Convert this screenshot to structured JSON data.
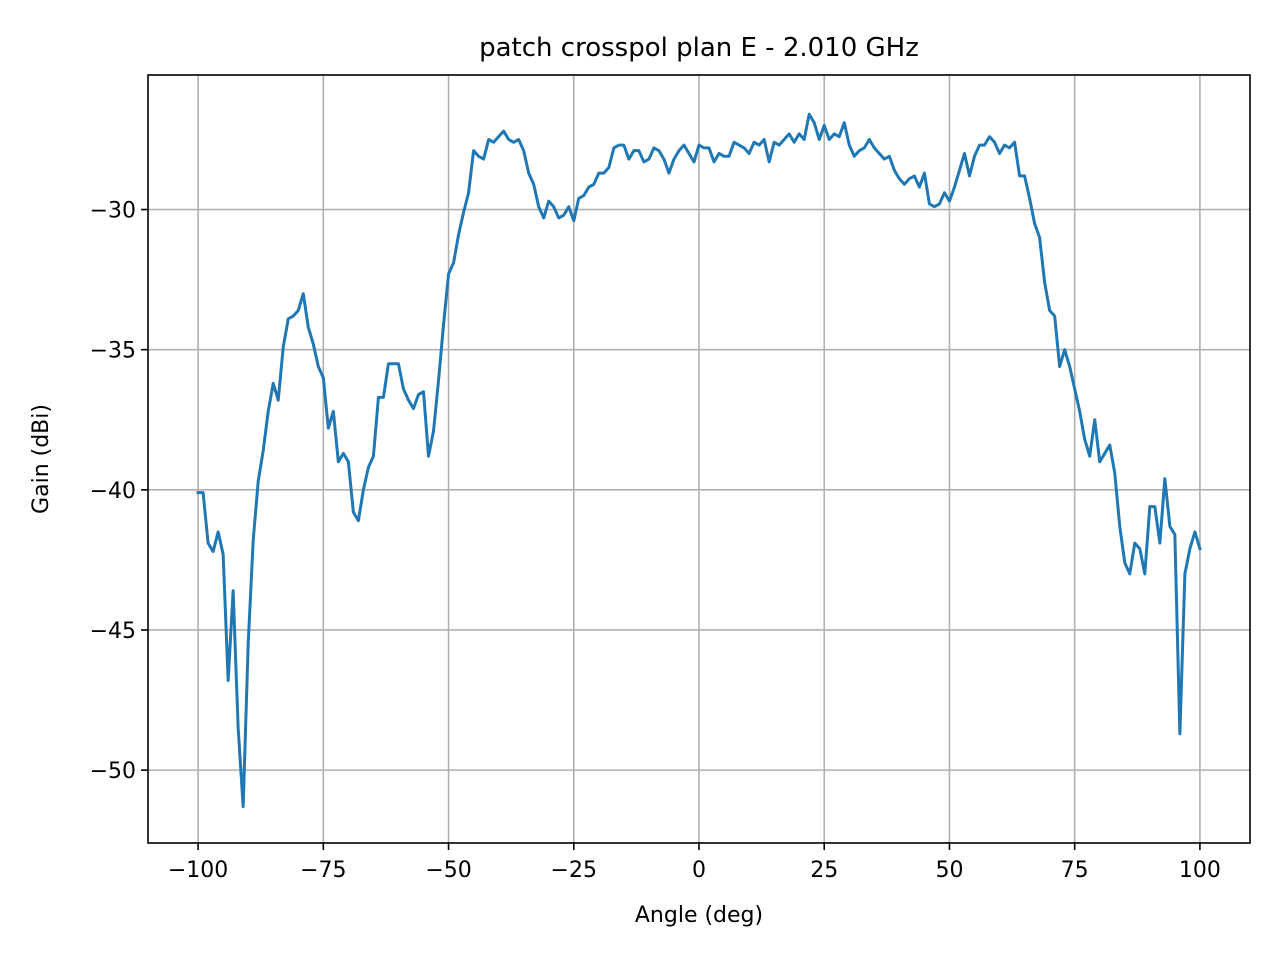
{
  "chart_data": {
    "type": "line",
    "title": "patch crosspol plan E - 2.010 GHz",
    "xlabel": "Angle (deg)",
    "ylabel": "Gain (dBi)",
    "xlim": [
      -110,
      110
    ],
    "ylim": [
      -52.6,
      -25.2
    ],
    "xticks": [
      -100,
      -75,
      -50,
      -25,
      0,
      25,
      50,
      75,
      100
    ],
    "xtick_labels": [
      "−100",
      "−75",
      "−50",
      "−25",
      "0",
      "25",
      "50",
      "75",
      "100"
    ],
    "yticks": [
      -50,
      -45,
      -40,
      -35,
      -30
    ],
    "ytick_labels": [
      "−50",
      "−45",
      "−40",
      "−35",
      "−30"
    ],
    "grid": true,
    "series": [
      {
        "color": "#1f77b4",
        "x": [
          -100,
          -99,
          -98,
          -97,
          -96,
          -95,
          -94,
          -93,
          -92,
          -91,
          -90,
          -89,
          -88,
          -87,
          -86,
          -85,
          -84,
          -83,
          -82,
          -81,
          -80,
          -79,
          -78,
          -77,
          -76,
          -75,
          -74,
          -73,
          -72,
          -71,
          -70,
          -69,
          -68,
          -67,
          -66,
          -65,
          -64,
          -63,
          -62,
          -61,
          -60,
          -59,
          -58,
          -57,
          -56,
          -55,
          -54,
          -53,
          -52,
          -51,
          -50,
          -49,
          -48,
          -47,
          -46,
          -45,
          -44,
          -43,
          -42,
          -41,
          -40,
          -39,
          -38,
          -37,
          -36,
          -35,
          -34,
          -33,
          -32,
          -31,
          -30,
          -29,
          -28,
          -27,
          -26,
          -25,
          -24,
          -23,
          -22,
          -21,
          -20,
          -19,
          -18,
          -17,
          -16,
          -15,
          -14,
          -13,
          -12,
          -11,
          -10,
          -9,
          -8,
          -7,
          -6,
          -5,
          -4,
          -3,
          -2,
          -1,
          0,
          1,
          2,
          3,
          4,
          5,
          6,
          7,
          8,
          9,
          10,
          11,
          12,
          13,
          14,
          15,
          16,
          17,
          18,
          19,
          20,
          21,
          22,
          23,
          24,
          25,
          26,
          27,
          28,
          29,
          30,
          31,
          32,
          33,
          34,
          35,
          36,
          37,
          38,
          39,
          40,
          41,
          42,
          43,
          44,
          45,
          46,
          47,
          48,
          49,
          50,
          51,
          52,
          53,
          54,
          55,
          56,
          57,
          58,
          59,
          60,
          61,
          62,
          63,
          64,
          65,
          66,
          67,
          68,
          69,
          70,
          71,
          72,
          73,
          74,
          75,
          76,
          77,
          78,
          79,
          80,
          81,
          82,
          83,
          84,
          85,
          86,
          87,
          88,
          89,
          90,
          91,
          92,
          93,
          94,
          95,
          96,
          97,
          98,
          99,
          100
        ],
        "y": [
          -40.1,
          -40.1,
          -41.9,
          -42.2,
          -41.5,
          -42.3,
          -46.8,
          -43.6,
          -48.5,
          -51.3,
          -45.5,
          -41.8,
          -39.7,
          -38.6,
          -37.2,
          -36.2,
          -36.8,
          -34.9,
          -33.9,
          -33.8,
          -33.6,
          -33.0,
          -34.2,
          -34.8,
          -35.6,
          -36.0,
          -37.8,
          -37.2,
          -39.0,
          -38.7,
          -39.0,
          -40.8,
          -41.1,
          -40.0,
          -39.2,
          -38.8,
          -36.7,
          -36.7,
          -35.5,
          -35.5,
          -35.5,
          -36.4,
          -36.8,
          -37.1,
          -36.6,
          -36.5,
          -38.8,
          -37.9,
          -36.1,
          -34.1,
          -32.3,
          -31.9,
          -30.9,
          -30.1,
          -29.4,
          -27.9,
          -28.1,
          -28.2,
          -27.5,
          -27.6,
          -27.4,
          -27.2,
          -27.5,
          -27.6,
          -27.5,
          -27.9,
          -28.7,
          -29.1,
          -29.9,
          -30.3,
          -29.7,
          -29.9,
          -30.3,
          -30.2,
          -29.9,
          -30.4,
          -29.6,
          -29.5,
          -29.2,
          -29.1,
          -28.7,
          -28.7,
          -28.5,
          -27.8,
          -27.7,
          -27.7,
          -28.2,
          -27.9,
          -27.9,
          -28.3,
          -28.2,
          -27.8,
          -27.9,
          -28.2,
          -28.7,
          -28.2,
          -27.9,
          -27.7,
          -28.0,
          -28.3,
          -27.7,
          -27.8,
          -27.8,
          -28.3,
          -28.0,
          -28.1,
          -28.1,
          -27.6,
          -27.7,
          -27.8,
          -28.0,
          -27.6,
          -27.7,
          -27.5,
          -28.3,
          -27.6,
          -27.7,
          -27.5,
          -27.3,
          -27.6,
          -27.3,
          -27.5,
          -26.6,
          -26.9,
          -27.5,
          -27.0,
          -27.5,
          -27.3,
          -27.4,
          -26.9,
          -27.7,
          -28.1,
          -27.9,
          -27.8,
          -27.5,
          -27.8,
          -28.0,
          -28.2,
          -28.1,
          -28.6,
          -28.9,
          -29.1,
          -28.9,
          -28.8,
          -29.2,
          -28.7,
          -29.8,
          -29.9,
          -29.8,
          -29.4,
          -29.7,
          -29.2,
          -28.6,
          -28.0,
          -28.8,
          -28.1,
          -27.7,
          -27.7,
          -27.4,
          -27.6,
          -28.0,
          -27.7,
          -27.8,
          -27.6,
          -28.8,
          -28.8,
          -29.6,
          -30.5,
          -31.0,
          -32.6,
          -33.6,
          -33.8,
          -35.6,
          -35.0,
          -35.6,
          -36.4,
          -37.2,
          -38.2,
          -38.8,
          -37.5,
          -39.0,
          -38.7,
          -38.4,
          -39.4,
          -41.3,
          -42.6,
          -43.0,
          -41.9,
          -42.1,
          -43.0,
          -40.6,
          -40.6,
          -41.9,
          -39.6,
          -41.3,
          -41.6,
          -48.7,
          -43.0,
          -42.1,
          -41.5,
          -42.1
        ]
      }
    ]
  }
}
